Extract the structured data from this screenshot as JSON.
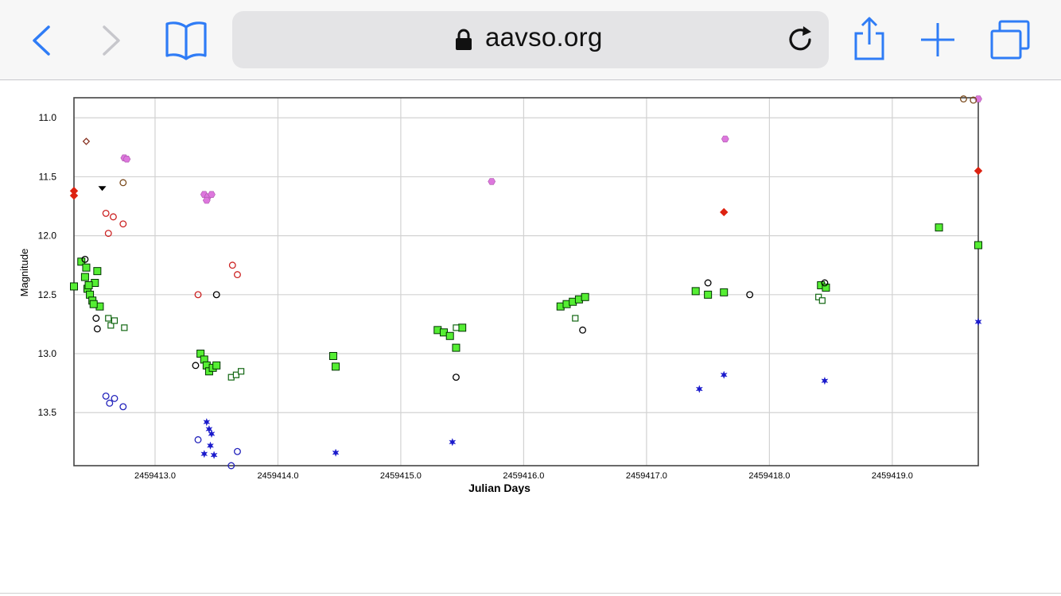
{
  "browser": {
    "url": "aavso.org",
    "accent": "#2f7cf6",
    "icons": [
      "back-icon",
      "forward-icon",
      "bookmarks-icon",
      "lock-icon",
      "reload-icon",
      "share-icon",
      "new-tab-icon",
      "tabs-icon"
    ]
  },
  "chart_data": {
    "type": "scatter",
    "xlabel": "Julian Days",
    "ylabel": "Magnitude",
    "xlim": [
      2459412.34,
      2459419.7
    ],
    "ylim": [
      13.95,
      10.83
    ],
    "y_inverted": true,
    "grid": true,
    "x_ticks": [
      2459413.0,
      2459414.0,
      2459415.0,
      2459416.0,
      2459417.0,
      2459418.0,
      2459419.0
    ],
    "x_tick_labels": [
      "2459413.0",
      "2459414.0",
      "2459415.0",
      "2459416.0",
      "2459417.0",
      "2459418.0",
      "2459419.0"
    ],
    "y_ticks": [
      11.0,
      11.5,
      12.0,
      12.5,
      13.0,
      13.5
    ],
    "y_tick_labels": [
      "11.0",
      "11.5",
      "12.0",
      "12.5",
      "13.0",
      "13.5"
    ],
    "series": [
      {
        "marker": "square",
        "color": "#55ee33",
        "stroke": "#003300",
        "points": [
          [
            2459412.34,
            12.43
          ],
          [
            2459412.4,
            12.22
          ],
          [
            2459412.43,
            12.35
          ],
          [
            2459412.45,
            12.45
          ],
          [
            2459412.47,
            12.5
          ],
          [
            2459412.49,
            12.55
          ],
          [
            2459412.51,
            12.4
          ],
          [
            2459412.53,
            12.3
          ],
          [
            2459412.55,
            12.6
          ],
          [
            2459412.44,
            12.27
          ],
          [
            2459412.5,
            12.58
          ],
          [
            2459412.46,
            12.42
          ],
          [
            2459413.37,
            13.0
          ],
          [
            2459413.4,
            13.05
          ],
          [
            2459413.42,
            13.1
          ],
          [
            2459413.44,
            13.15
          ],
          [
            2459413.47,
            13.12
          ],
          [
            2459413.5,
            13.1
          ],
          [
            2459414.45,
            13.02
          ],
          [
            2459414.47,
            13.11
          ],
          [
            2459415.3,
            12.8
          ],
          [
            2459415.35,
            12.82
          ],
          [
            2459415.4,
            12.85
          ],
          [
            2459415.45,
            12.95
          ],
          [
            2459415.5,
            12.78
          ],
          [
            2459416.3,
            12.6
          ],
          [
            2459416.35,
            12.58
          ],
          [
            2459416.4,
            12.56
          ],
          [
            2459416.45,
            12.54
          ],
          [
            2459416.5,
            12.52
          ],
          [
            2459417.4,
            12.47
          ],
          [
            2459417.5,
            12.5
          ],
          [
            2459417.63,
            12.48
          ],
          [
            2459418.42,
            12.42
          ],
          [
            2459418.46,
            12.44
          ],
          [
            2459419.38,
            11.93
          ],
          [
            2459419.7,
            12.08
          ]
        ]
      },
      {
        "marker": "square-open",
        "color": "#ffffff",
        "stroke": "#116611",
        "points": [
          [
            2459412.62,
            12.7
          ],
          [
            2459412.64,
            12.76
          ],
          [
            2459412.67,
            12.72
          ],
          [
            2459412.75,
            12.78
          ],
          [
            2459413.62,
            13.2
          ],
          [
            2459413.66,
            13.18
          ],
          [
            2459413.7,
            13.15
          ],
          [
            2459415.45,
            12.78
          ],
          [
            2459416.42,
            12.7
          ],
          [
            2459418.4,
            12.52
          ],
          [
            2459418.43,
            12.55
          ]
        ]
      },
      {
        "marker": "circle-open",
        "color": "#000000",
        "points": [
          [
            2459412.43,
            12.2
          ],
          [
            2459412.52,
            12.7
          ],
          [
            2459412.53,
            12.79
          ],
          [
            2459413.33,
            13.1
          ],
          [
            2459413.5,
            12.5
          ],
          [
            2459415.45,
            13.2
          ],
          [
            2459416.48,
            12.8
          ],
          [
            2459417.5,
            12.4
          ],
          [
            2459417.84,
            12.5
          ],
          [
            2459418.45,
            12.4
          ]
        ]
      },
      {
        "marker": "circle-open",
        "color": "#cc2222",
        "points": [
          [
            2459412.6,
            11.81
          ],
          [
            2459412.62,
            11.98
          ],
          [
            2459412.66,
            11.84
          ],
          [
            2459412.74,
            11.9
          ],
          [
            2459413.35,
            12.5
          ],
          [
            2459413.63,
            12.25
          ],
          [
            2459413.67,
            12.33
          ]
        ]
      },
      {
        "marker": "circle-open",
        "color": "#2222bb",
        "points": [
          [
            2459412.6,
            13.36
          ],
          [
            2459412.63,
            13.42
          ],
          [
            2459412.67,
            13.38
          ],
          [
            2459412.74,
            13.45
          ],
          [
            2459413.35,
            13.73
          ],
          [
            2459413.62,
            13.95
          ],
          [
            2459413.67,
            13.83
          ]
        ]
      },
      {
        "marker": "star",
        "color": "#1a1acc",
        "points": [
          [
            2459413.42,
            13.58
          ],
          [
            2459413.44,
            13.64
          ],
          [
            2459413.46,
            13.68
          ],
          [
            2459413.4,
            13.85
          ],
          [
            2459413.48,
            13.86
          ],
          [
            2459413.45,
            13.78
          ],
          [
            2459414.47,
            13.84
          ],
          [
            2459415.42,
            13.75
          ],
          [
            2459417.43,
            13.3
          ],
          [
            2459417.63,
            13.18
          ],
          [
            2459418.45,
            13.23
          ],
          [
            2459419.7,
            12.73
          ]
        ]
      },
      {
        "marker": "hexagon",
        "color": "#dd77dd",
        "points": [
          [
            2459412.75,
            11.34
          ],
          [
            2459412.77,
            11.35
          ],
          [
            2459413.4,
            11.65
          ],
          [
            2459413.43,
            11.67
          ],
          [
            2459413.46,
            11.65
          ],
          [
            2459413.42,
            11.7
          ],
          [
            2459415.74,
            11.54
          ],
          [
            2459417.64,
            11.18
          ],
          [
            2459419.7,
            10.84
          ]
        ]
      },
      {
        "marker": "diamond",
        "color": "#dd2211",
        "points": [
          [
            2459412.34,
            11.62
          ],
          [
            2459412.34,
            11.66
          ],
          [
            2459417.63,
            11.8
          ],
          [
            2459419.7,
            11.45
          ]
        ]
      },
      {
        "marker": "diamond-open",
        "color": "#883322",
        "points": [
          [
            2459412.44,
            11.2
          ]
        ]
      },
      {
        "marker": "circle-open",
        "color": "#7a4a1c",
        "points": [
          [
            2459412.74,
            11.55
          ],
          [
            2459419.58,
            10.84
          ],
          [
            2459419.66,
            10.85
          ]
        ]
      },
      {
        "marker": "triangle-down",
        "color": "#000000",
        "points": [
          [
            2459412.57,
            11.6
          ]
        ]
      }
    ]
  }
}
